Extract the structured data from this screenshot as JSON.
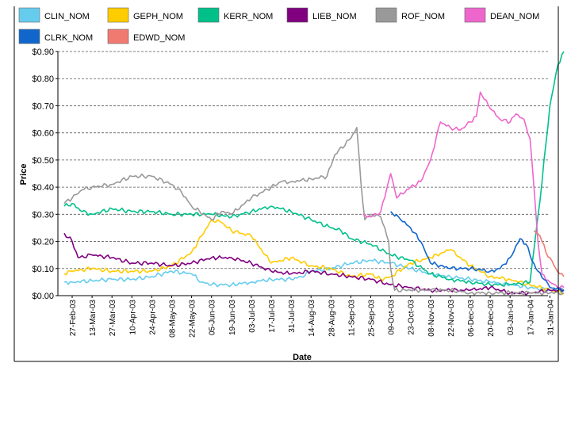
{
  "chart_data": {
    "type": "line",
    "title": "",
    "xlabel": "Date",
    "ylabel": "Price",
    "ylim": [
      0,
      0.9
    ],
    "grid": true,
    "legend_position": "top",
    "y_ticks": [
      "$0.00",
      "$0.10",
      "$0.20",
      "$0.30",
      "$0.40",
      "$0.50",
      "$0.60",
      "$0.70",
      "$0.80",
      "$0.90"
    ],
    "x_ticks": [
      "27-Feb-03",
      "13-Mar-03",
      "27-Mar-03",
      "10-Apr-03",
      "24-Apr-03",
      "08-May-03",
      "22-May-03",
      "05-Jun-03",
      "19-Jun-03",
      "03-Jul-03",
      "17-Jul-03",
      "31-Jul-03",
      "14-Aug-03",
      "28-Aug-03",
      "11-Sep-03",
      "25-Sep-03",
      "09-Oct-03",
      "23-Oct-03",
      "08-Nov-03",
      "22-Nov-03",
      "06-Dec-03",
      "20-Dec-03",
      "03-Jan-04",
      "17-Jan-04",
      "31-Jan-04"
    ],
    "x_range": [
      0,
      24.75
    ],
    "series": [
      {
        "name": "CLIN_NOM",
        "color": "#66ccee",
        "points": [
          [
            -0.4,
            0.05
          ],
          [
            0,
            0.05
          ],
          [
            1,
            0.055
          ],
          [
            2,
            0.06
          ],
          [
            3,
            0.06
          ],
          [
            4,
            0.07
          ],
          [
            5,
            0.09
          ],
          [
            6,
            0.08
          ],
          [
            6.5,
            0.05
          ],
          [
            7,
            0.04
          ],
          [
            8,
            0.04
          ],
          [
            9,
            0.05
          ],
          [
            10,
            0.06
          ],
          [
            11,
            0.06
          ],
          [
            11.5,
            0.07
          ],
          [
            12,
            0.09
          ],
          [
            13,
            0.1
          ],
          [
            14,
            0.12
          ],
          [
            15,
            0.13
          ],
          [
            16,
            0.12
          ],
          [
            17,
            0.1
          ],
          [
            18,
            0.08
          ],
          [
            19,
            0.07
          ],
          [
            20,
            0.06
          ],
          [
            21,
            0.05
          ],
          [
            22,
            0.04
          ],
          [
            23,
            0.03
          ],
          [
            24,
            0.02
          ],
          [
            24.7,
            0.02
          ]
        ]
      },
      {
        "name": "GEPH_NOM",
        "color": "#ffcc00",
        "points": [
          [
            -0.4,
            0.08
          ],
          [
            0,
            0.09
          ],
          [
            1,
            0.1
          ],
          [
            2,
            0.09
          ],
          [
            3,
            0.09
          ],
          [
            4,
            0.09
          ],
          [
            5,
            0.11
          ],
          [
            6,
            0.16
          ],
          [
            6.5,
            0.22
          ],
          [
            7,
            0.28
          ],
          [
            7.5,
            0.27
          ],
          [
            8,
            0.24
          ],
          [
            9,
            0.22
          ],
          [
            10,
            0.12
          ],
          [
            11,
            0.14
          ],
          [
            12,
            0.11
          ],
          [
            13,
            0.1
          ],
          [
            14,
            0.07
          ],
          [
            15,
            0.08
          ],
          [
            15.5,
            0.06
          ],
          [
            16,
            0.07
          ],
          [
            17,
            0.12
          ],
          [
            18,
            0.14
          ],
          [
            19,
            0.17
          ],
          [
            20,
            0.11
          ],
          [
            21,
            0.07
          ],
          [
            22,
            0.06
          ],
          [
            23,
            0.04
          ],
          [
            24,
            0.02
          ],
          [
            24.7,
            0.01
          ]
        ]
      },
      {
        "name": "KERR_NOM",
        "color": "#00c08a",
        "points": [
          [
            -0.4,
            0.33
          ],
          [
            0,
            0.34
          ],
          [
            0.5,
            0.31
          ],
          [
            1,
            0.3
          ],
          [
            2,
            0.32
          ],
          [
            3,
            0.31
          ],
          [
            4,
            0.31
          ],
          [
            5,
            0.3
          ],
          [
            6,
            0.3
          ],
          [
            7,
            0.3
          ],
          [
            8,
            0.29
          ],
          [
            9,
            0.31
          ],
          [
            10,
            0.33
          ],
          [
            11,
            0.31
          ],
          [
            12,
            0.28
          ],
          [
            13,
            0.25
          ],
          [
            13.5,
            0.24
          ],
          [
            14,
            0.21
          ],
          [
            15,
            0.19
          ],
          [
            16,
            0.15
          ],
          [
            17,
            0.13
          ],
          [
            18,
            0.08
          ],
          [
            19,
            0.06
          ],
          [
            20,
            0.05
          ],
          [
            21,
            0.04
          ],
          [
            22,
            0.04
          ],
          [
            23,
            0.05
          ],
          [
            23.5,
            0.35
          ],
          [
            24,
            0.7
          ],
          [
            24.4,
            0.85
          ],
          [
            24.7,
            0.9
          ]
        ]
      },
      {
        "name": "LIEB_NOM",
        "color": "#800080",
        "points": [
          [
            -0.4,
            0.23
          ],
          [
            0,
            0.2
          ],
          [
            0.3,
            0.14
          ],
          [
            1,
            0.15
          ],
          [
            2,
            0.14
          ],
          [
            3,
            0.12
          ],
          [
            4,
            0.12
          ],
          [
            5,
            0.11
          ],
          [
            6,
            0.12
          ],
          [
            7,
            0.14
          ],
          [
            8,
            0.14
          ],
          [
            9,
            0.12
          ],
          [
            10,
            0.09
          ],
          [
            11,
            0.08
          ],
          [
            12,
            0.09
          ],
          [
            13,
            0.08
          ],
          [
            14,
            0.07
          ],
          [
            15,
            0.06
          ],
          [
            16,
            0.04
          ],
          [
            17,
            0.03
          ],
          [
            18,
            0.02
          ],
          [
            19,
            0.02
          ],
          [
            20,
            0.02
          ],
          [
            21,
            0.03
          ],
          [
            22,
            0.01
          ],
          [
            23,
            0.01
          ],
          [
            24,
            0.02
          ],
          [
            24.7,
            0.02
          ]
        ]
      },
      {
        "name": "ROF_NOM",
        "color": "#999999",
        "points": [
          [
            -0.4,
            0.34
          ],
          [
            0,
            0.36
          ],
          [
            0.5,
            0.39
          ],
          [
            1,
            0.4
          ],
          [
            2,
            0.41
          ],
          [
            3,
            0.44
          ],
          [
            4,
            0.44
          ],
          [
            5,
            0.41
          ],
          [
            5.5,
            0.38
          ],
          [
            6,
            0.33
          ],
          [
            7,
            0.28
          ],
          [
            7.5,
            0.31
          ],
          [
            8,
            0.3
          ],
          [
            9,
            0.36
          ],
          [
            10,
            0.4
          ],
          [
            10.5,
            0.42
          ],
          [
            11,
            0.42
          ],
          [
            12,
            0.43
          ],
          [
            12.8,
            0.44
          ],
          [
            13.2,
            0.52
          ],
          [
            14,
            0.58
          ],
          [
            14.3,
            0.62
          ],
          [
            14.5,
            0.42
          ],
          [
            14.7,
            0.28
          ],
          [
            15,
            0.3
          ],
          [
            15.5,
            0.29
          ],
          [
            15.9,
            0.2
          ],
          [
            16,
            0.1
          ],
          [
            16.2,
            0.02
          ],
          [
            17,
            0.02
          ],
          [
            18,
            0.02
          ],
          [
            19,
            0.02
          ],
          [
            20,
            0.01
          ],
          [
            21,
            0.01
          ],
          [
            22,
            0.01
          ],
          [
            23,
            0.01
          ],
          [
            24,
            0.01
          ],
          [
            24.7,
            0.01
          ]
        ]
      },
      {
        "name": "DEAN_NOM",
        "color": "#ee66cc",
        "points": [
          [
            14.6,
            0.3
          ],
          [
            15,
            0.29
          ],
          [
            15.5,
            0.31
          ],
          [
            16,
            0.45
          ],
          [
            16.3,
            0.36
          ],
          [
            17,
            0.4
          ],
          [
            17.5,
            0.42
          ],
          [
            18,
            0.5
          ],
          [
            18.5,
            0.64
          ],
          [
            19,
            0.62
          ],
          [
            19.5,
            0.61
          ],
          [
            20,
            0.64
          ],
          [
            20.3,
            0.66
          ],
          [
            20.5,
            0.75
          ],
          [
            21,
            0.69
          ],
          [
            21.5,
            0.65
          ],
          [
            22,
            0.64
          ],
          [
            22.3,
            0.67
          ],
          [
            22.7,
            0.65
          ],
          [
            23,
            0.58
          ],
          [
            23.2,
            0.4
          ],
          [
            23.4,
            0.2
          ],
          [
            23.6,
            0.08
          ],
          [
            24,
            0.05
          ],
          [
            24.5,
            0.03
          ],
          [
            24.7,
            0.03
          ]
        ]
      },
      {
        "name": "CLRK_NOM",
        "color": "#1166cc",
        "points": [
          [
            16,
            0.31
          ],
          [
            16.5,
            0.28
          ],
          [
            17,
            0.25
          ],
          [
            17.5,
            0.2
          ],
          [
            18,
            0.12
          ],
          [
            19,
            0.1
          ],
          [
            20,
            0.1
          ],
          [
            21,
            0.09
          ],
          [
            21.5,
            0.1
          ],
          [
            22,
            0.14
          ],
          [
            22.5,
            0.21
          ],
          [
            22.8,
            0.19
          ],
          [
            23,
            0.15
          ],
          [
            23.3,
            0.1
          ],
          [
            23.7,
            0.06
          ],
          [
            24,
            0.03
          ],
          [
            24.7,
            0.02
          ]
        ]
      },
      {
        "name": "EDWD_NOM",
        "color": "#f07a70",
        "points": [
          [
            23.2,
            0.24
          ],
          [
            23.5,
            0.22
          ],
          [
            23.8,
            0.16
          ],
          [
            24,
            0.14
          ],
          [
            24.3,
            0.1
          ],
          [
            24.5,
            0.08
          ],
          [
            24.7,
            0.07
          ]
        ]
      }
    ]
  }
}
